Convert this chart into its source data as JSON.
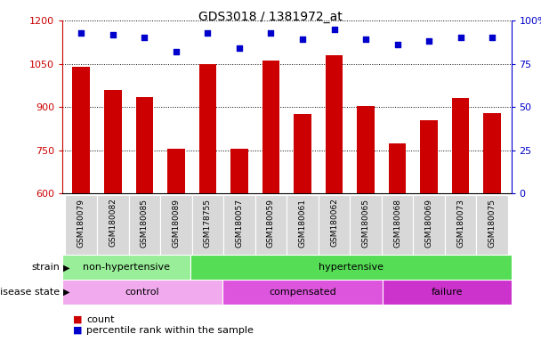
{
  "title": "GDS3018 / 1381972_at",
  "samples": [
    "GSM180079",
    "GSM180082",
    "GSM180085",
    "GSM180089",
    "GSM178755",
    "GSM180057",
    "GSM180059",
    "GSM180061",
    "GSM180062",
    "GSM180065",
    "GSM180068",
    "GSM180069",
    "GSM180073",
    "GSM180075"
  ],
  "counts": [
    1040,
    960,
    935,
    755,
    1050,
    755,
    1060,
    875,
    1080,
    905,
    775,
    855,
    930,
    880
  ],
  "percentiles": [
    93,
    92,
    90,
    82,
    93,
    84,
    93,
    89,
    95,
    89,
    86,
    88,
    90,
    90
  ],
  "bar_color": "#cc0000",
  "dot_color": "#0000cc",
  "ylim_left": [
    600,
    1200
  ],
  "ylim_right": [
    0,
    100
  ],
  "yticks_left": [
    600,
    750,
    900,
    1050,
    1200
  ],
  "yticks_right": [
    0,
    25,
    50,
    75,
    100
  ],
  "ytick_labels_right": [
    "0",
    "25",
    "50",
    "75",
    "100%"
  ],
  "strain_groups": [
    {
      "label": "non-hypertensive",
      "start": 0,
      "end": 4,
      "color": "#99ee99"
    },
    {
      "label": "hypertensive",
      "start": 4,
      "end": 14,
      "color": "#55dd55"
    }
  ],
  "disease_groups": [
    {
      "label": "control",
      "start": 0,
      "end": 5,
      "color": "#f0a0f0"
    },
    {
      "label": "compensated",
      "start": 5,
      "end": 10,
      "color": "#dd55dd"
    },
    {
      "label": "failure",
      "start": 10,
      "end": 14,
      "color": "#dd55dd"
    }
  ],
  "strain_label": "strain",
  "disease_label": "disease state",
  "legend_count_label": "count",
  "legend_pct_label": "percentile rank within the sample",
  "background_color": "#ffffff",
  "plot_bg_color": "#ffffff",
  "xtick_bg_color": "#d8d8d8",
  "grid_color": "#000000",
  "title_color": "#000000",
  "left_axis_color": "#cc0000",
  "right_axis_color": "#0000cc"
}
